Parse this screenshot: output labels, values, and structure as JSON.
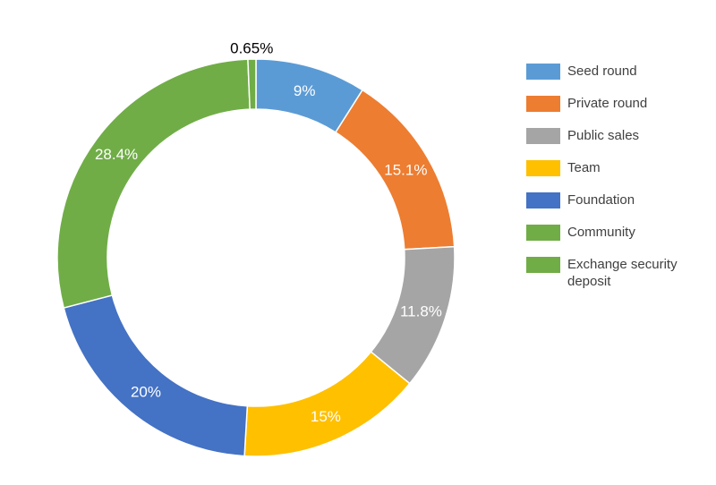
{
  "chart_data": {
    "type": "pie",
    "donut": true,
    "legend_position": "right",
    "slices": [
      {
        "label": "Seed round",
        "value": 9,
        "value_label": "9%",
        "color": "#5B9BD5"
      },
      {
        "label": "Private round",
        "value": 15.1,
        "value_label": "15.1%",
        "color": "#ED7D31"
      },
      {
        "label": "Public sales",
        "value": 11.8,
        "value_label": "11.8%",
        "color": "#A5A5A5"
      },
      {
        "label": "Team",
        "value": 15,
        "value_label": "15%",
        "color": "#FFC000"
      },
      {
        "label": "Foundation",
        "value": 20,
        "value_label": "20%",
        "color": "#4472C4"
      },
      {
        "label": "Community",
        "value": 28.4,
        "value_label": "28.4%",
        "color": "#70AD47"
      },
      {
        "label": "Exchange security deposit",
        "value": 0.65,
        "value_label": "0.65%",
        "color": "#70AD47"
      }
    ]
  }
}
